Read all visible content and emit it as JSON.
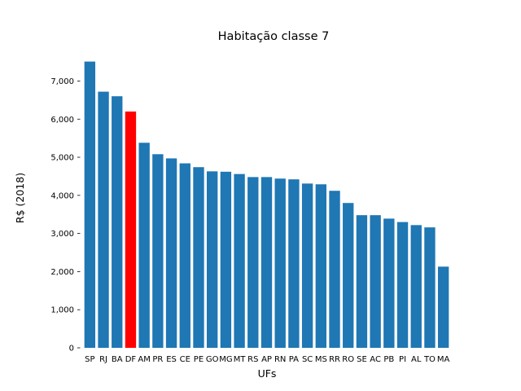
{
  "chart_data": {
    "type": "bar",
    "title": "Habitação classe 7",
    "xlabel": "UFs",
    "ylabel": "R$ (2018)",
    "categories": [
      "SP",
      "RJ",
      "BA",
      "DF",
      "AM",
      "PR",
      "ES",
      "CE",
      "PE",
      "GO",
      "MG",
      "MT",
      "RS",
      "AP",
      "RN",
      "PA",
      "SC",
      "MS",
      "RR",
      "RO",
      "SE",
      "AC",
      "PB",
      "PI",
      "AL",
      "TO",
      "MA"
    ],
    "values": [
      7510,
      6720,
      6600,
      6200,
      5380,
      5080,
      4970,
      4840,
      4740,
      4630,
      4620,
      4560,
      4480,
      4480,
      4440,
      4420,
      4310,
      4290,
      4120,
      3800,
      3480,
      3480,
      3390,
      3300,
      3220,
      3160,
      2130
    ],
    "highlight": "DF",
    "colors": {
      "default": "#1f77b4",
      "highlight": "#ff0000"
    },
    "yticks": [
      0,
      1000,
      2000,
      3000,
      4000,
      5000,
      6000,
      7000
    ],
    "ytick_labels": [
      "0",
      "1,000",
      "2,000",
      "3,000",
      "4,000",
      "5,000",
      "6,000",
      "7,000"
    ],
    "ylim": [
      0,
      7886
    ],
    "grid": false,
    "legend": "none"
  }
}
